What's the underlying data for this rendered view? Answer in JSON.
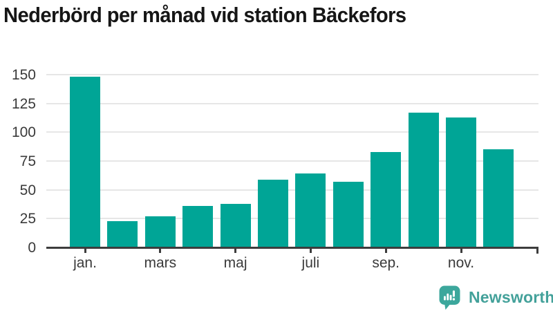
{
  "title": "Nederbörd per månad vid station Bäckefors",
  "branding": {
    "logo_text": "Newsworthy",
    "logo_icon": "bar-chart-speech-bubble-icon",
    "accent_color": "#43a19a"
  },
  "chart_data": {
    "type": "bar",
    "title": "Nederbörd per månad vid station Bäckefors",
    "x_tick_labels": [
      "jan.",
      "mars",
      "maj",
      "juli",
      "sep.",
      "nov."
    ],
    "months_per_tick": 2,
    "values": [
      148,
      23,
      27,
      36,
      38,
      59,
      64,
      57,
      83,
      117,
      113,
      85
    ],
    "yticks": [
      0,
      25,
      50,
      75,
      100,
      125,
      150
    ],
    "ylim": [
      0,
      150
    ],
    "xlabel": "",
    "ylabel": "",
    "bar_color": "#00a596",
    "axis_color": "#3d3d3d",
    "grid": true,
    "legend": false
  }
}
